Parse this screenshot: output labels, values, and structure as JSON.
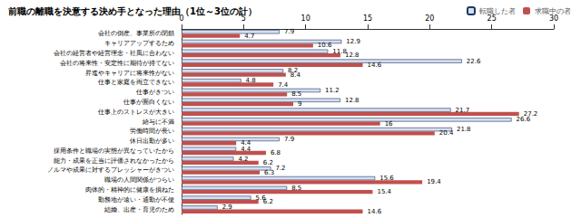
{
  "chart_data": {
    "type": "bar",
    "orientation": "horizontal",
    "title": "前職の離職を決意する決め手となった理由（1位～3位の計）",
    "categories": [
      "会社の倒産、事業所の閉鎖",
      "キャリアアップするため",
      "会社の経営者や経営理念・社風に合わない",
      "会社の将来性・安定性に期待が持てない",
      "昇進やキャリアに将来性がない",
      "仕事と家庭を両立できない",
      "仕事がきつい",
      "仕事が面白くない",
      "仕事上のストレスが大きい",
      "給与に不満",
      "労働時間が長い",
      "休日出勤が多い",
      "採用条件と職場の実態が異なっていたから",
      "能力・成果を正当に評価されなかったから",
      "ノルマや成果に対するプレッシャーがきつい",
      "職場の人間関係がつらい",
      "肉体的・精神的に健康を損ねた",
      "勤務地が遠い・通勤が不便",
      "結婚、出産・育児のため"
    ],
    "series": [
      {
        "name": "転職した者",
        "color": "#d6deee",
        "values": [
          7.9,
          12.9,
          11.8,
          22.6,
          8.2,
          4.8,
          11.2,
          12.8,
          21.7,
          26.6,
          21.8,
          7.9,
          4.4,
          4.2,
          7.2,
          15.6,
          8.5,
          5.6,
          2.9
        ]
      },
      {
        "name": "求職中の者",
        "color": "#c0504d",
        "values": [
          4.7,
          10.6,
          12.8,
          14.6,
          8.4,
          7.4,
          8.5,
          9.0,
          27.2,
          16.0,
          20.4,
          4.4,
          6.8,
          6.2,
          6.3,
          19.4,
          15.4,
          6.2,
          14.6
        ]
      }
    ],
    "xlim": [
      0,
      30
    ],
    "xticks": [
      0,
      5,
      10,
      15,
      20,
      25,
      30
    ],
    "data_labels": true,
    "legend": "top-right",
    "grid": false
  }
}
